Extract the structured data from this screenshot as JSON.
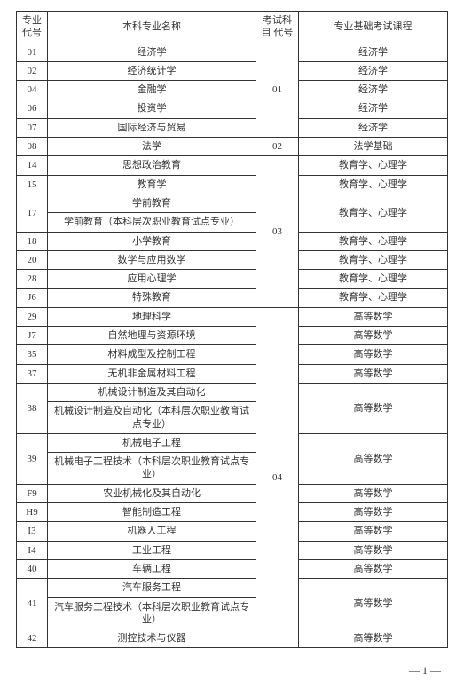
{
  "headers": {
    "code": "专业\n代号",
    "major": "本科专业名称",
    "exam": "考试科目\n代号",
    "course": "专业基础考试课程"
  },
  "rows": [
    {
      "code": "01",
      "major": "经济学",
      "exam": "01",
      "examRowspan": 5,
      "course": "经济学"
    },
    {
      "code": "02",
      "major": "经济统计学",
      "course": "经济学"
    },
    {
      "code": "04",
      "major": "金融学",
      "course": "经济学"
    },
    {
      "code": "06",
      "major": "投资学",
      "course": "经济学"
    },
    {
      "code": "07",
      "major": "国际经济与贸易",
      "course": "经济学"
    },
    {
      "code": "08",
      "major": "法学",
      "exam": "02",
      "examRowspan": 1,
      "course": "法学基础"
    },
    {
      "code": "14",
      "major": "思想政治教育",
      "exam": "03",
      "examRowspan": 7,
      "course": "教育学、心理学"
    },
    {
      "code": "15",
      "major": "教育学",
      "course": "教育学、心理学"
    },
    {
      "code": "17",
      "majorSplit": [
        "学前教育",
        "学前教育（本科层次职业教育试点专业）"
      ],
      "course": "教育学、心理学"
    },
    {
      "code": "18",
      "major": "小学教育",
      "course": "教育学、心理学"
    },
    {
      "code": "20",
      "major": "数学与应用数学",
      "course": "教育学、心理学"
    },
    {
      "code": "28",
      "major": "应用心理学",
      "course": "教育学、心理学"
    },
    {
      "code": "J6",
      "major": "特殊教育",
      "course": "教育学、心理学"
    },
    {
      "code": "29",
      "major": "地理科学",
      "exam": "04",
      "examRowspan": 13,
      "course": "高等数学"
    },
    {
      "code": "J7",
      "major": "自然地理与资源环境",
      "course": "高等数学"
    },
    {
      "code": "35",
      "major": "材料成型及控制工程",
      "course": "高等数学"
    },
    {
      "code": "37",
      "major": "无机非金属材料工程",
      "course": "高等数学"
    },
    {
      "code": "38",
      "majorSplit": [
        "机械设计制造及其自动化",
        "机械设计制造及自动化（本科层次职业教育试点专业）"
      ],
      "course": "高等数学"
    },
    {
      "code": "39",
      "majorSplit": [
        "机械电子工程",
        "机械电子工程技术（本科层次职业教育试点专业）"
      ],
      "course": "高等数学"
    },
    {
      "code": "F9",
      "major": "农业机械化及其自动化",
      "course": "高等数学"
    },
    {
      "code": "H9",
      "major": "智能制造工程",
      "course": "高等数学"
    },
    {
      "code": "I3",
      "major": "机器人工程",
      "course": "高等数学"
    },
    {
      "code": "I4",
      "major": "工业工程",
      "course": "高等数学"
    },
    {
      "code": "40",
      "major": "车辆工程",
      "course": "高等数学"
    },
    {
      "code": "41",
      "majorSplit": [
        "汽车服务工程",
        "汽车服务工程技术（本科层次职业教育试点专业）"
      ],
      "course": "高等数学"
    },
    {
      "code": "42",
      "major": "测控技术与仪器",
      "course": "高等数学"
    }
  ],
  "pageLabel": "— 1 —"
}
